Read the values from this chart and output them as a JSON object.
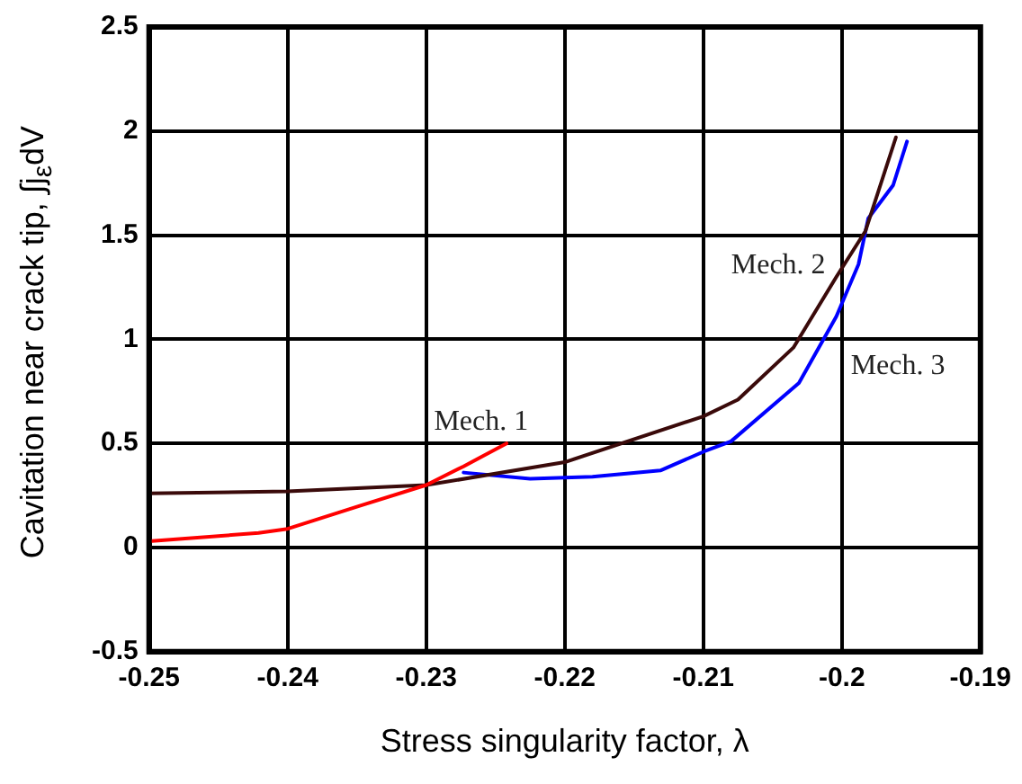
{
  "chart_data": {
    "type": "line",
    "xlabel": "Stress singularity factor, λ",
    "ylabel": "Cavitation near crack tip, ∫j$_{ε}$dV",
    "xlim": [
      -0.25,
      -0.19
    ],
    "xticks": [
      -0.25,
      -0.24,
      -0.23,
      -0.22,
      -0.21,
      -0.2,
      -0.19
    ],
    "ylim": [
      -0.5,
      2.5
    ],
    "yticks": [
      -0.5,
      0,
      0.5,
      1,
      1.5,
      2,
      2.5
    ],
    "grid": true,
    "legend": false,
    "marker": "none",
    "line_style": "solid",
    "series": [
      {
        "name": "Mech. 1",
        "color": "#ff0000",
        "x": [
          -0.25,
          -0.2421,
          -0.24,
          -0.2348,
          -0.23,
          -0.2273,
          -0.2242
        ],
        "values": [
          0.03,
          0.07,
          0.09,
          0.2,
          0.3,
          0.39,
          0.5
        ]
      },
      {
        "name": "Mech. 2",
        "color": "#3a0a0a",
        "x": [
          -0.25,
          -0.24,
          -0.23,
          -0.22,
          -0.21,
          -0.2075,
          -0.2035,
          -0.2004,
          -0.1983,
          -0.1961
        ],
        "values": [
          0.26,
          0.27,
          0.3,
          0.41,
          0.63,
          0.71,
          0.96,
          1.3,
          1.52,
          1.97
        ]
      },
      {
        "name": "Mech. 3",
        "color": "#0000ff",
        "x": [
          -0.2273,
          -0.2225,
          -0.218,
          -0.2131,
          -0.21,
          -0.208,
          -0.2031,
          -0.2004,
          -0.1988,
          -0.1981,
          -0.1963,
          -0.1953
        ],
        "values": [
          0.36,
          0.33,
          0.34,
          0.37,
          0.46,
          0.51,
          0.79,
          1.11,
          1.36,
          1.58,
          1.74,
          1.95
        ]
      }
    ]
  }
}
